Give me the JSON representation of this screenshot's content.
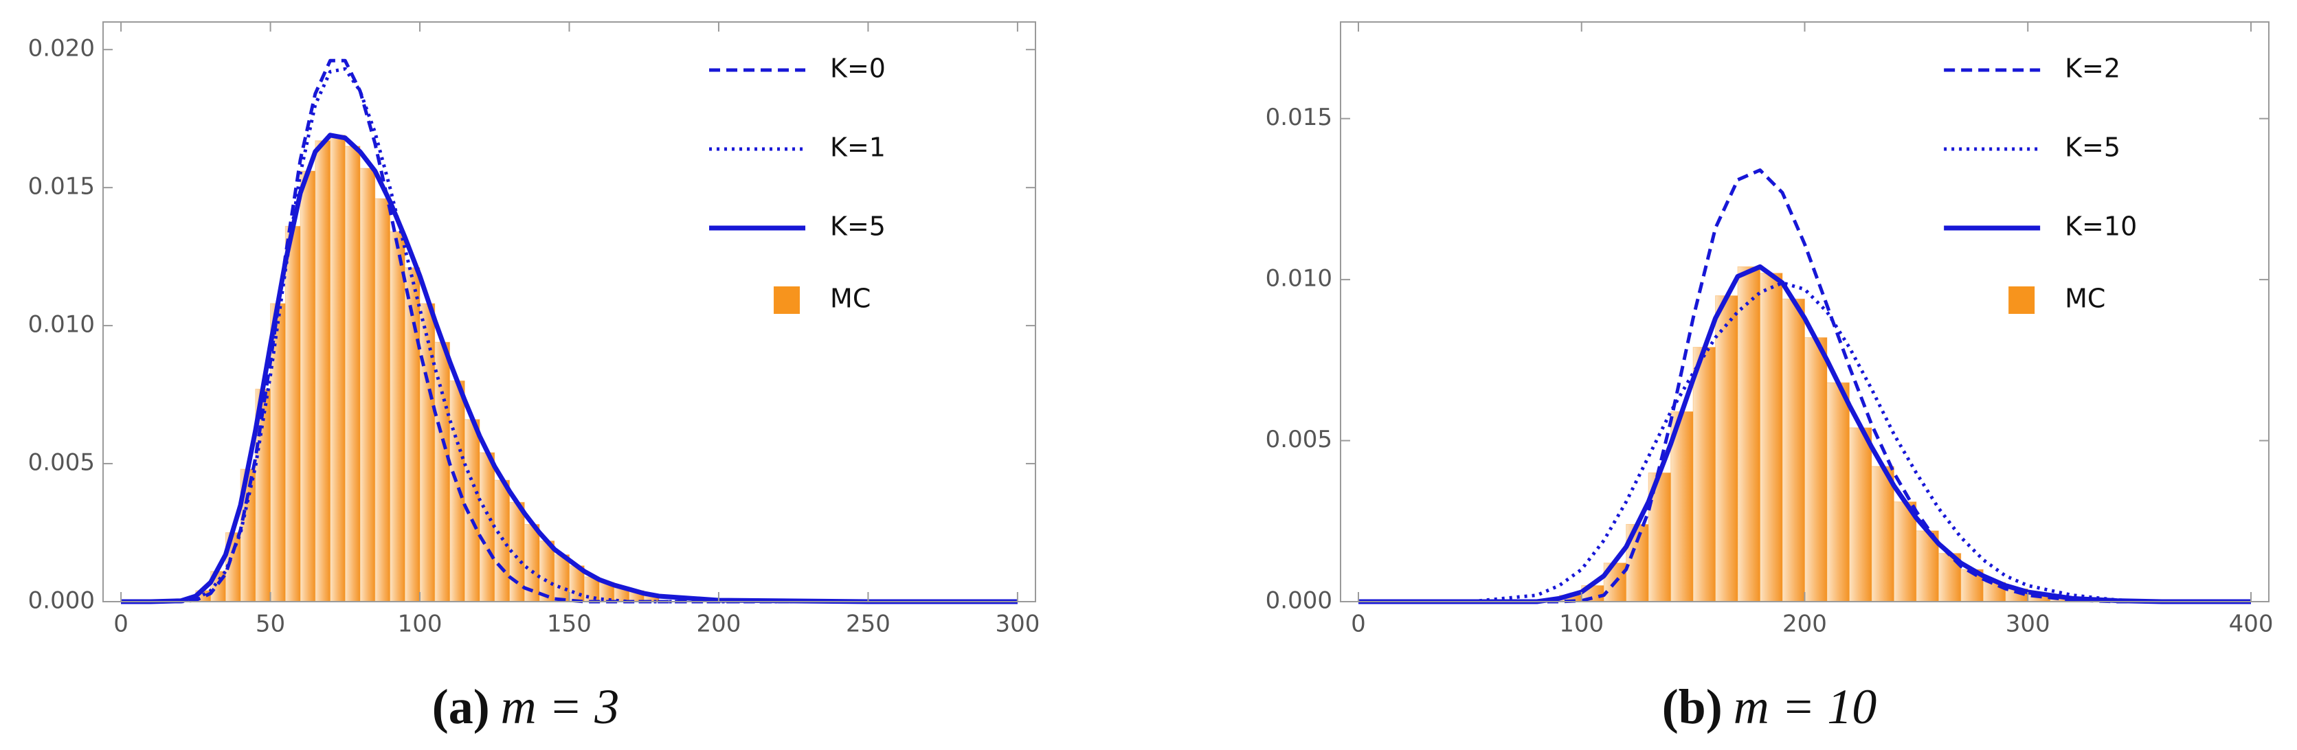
{
  "chart_data": [
    {
      "type": "histogram",
      "caption_label": "(a)",
      "caption": "m = 3",
      "xlim": [
        -6,
        306
      ],
      "ylim": [
        0,
        0.021
      ],
      "xticks": [
        0,
        50,
        100,
        150,
        200,
        250,
        300
      ],
      "yticks": [
        {
          "value": 0,
          "label": "0.000"
        },
        0.005,
        {
          "value": 0.01,
          "label": "0.010"
        },
        0.015,
        {
          "value": 0.02,
          "label": "0.020"
        }
      ],
      "grid": false,
      "legend": "top right",
      "x": [
        0,
        10,
        20,
        25,
        30,
        35,
        40,
        45,
        50,
        55,
        60,
        65,
        70,
        75,
        80,
        85,
        90,
        95,
        100,
        105,
        110,
        115,
        120,
        125,
        130,
        135,
        140,
        145,
        150,
        155,
        160,
        165,
        170,
        175,
        180,
        200,
        250,
        300
      ],
      "series": [
        {
          "name": "K=0",
          "color": "#1717d6",
          "style": "dash",
          "values": [
            0,
            0,
            0,
            5e-05,
            0.0003,
            0.001,
            0.0026,
            0.0052,
            0.0087,
            0.0125,
            0.016,
            0.0184,
            0.0196,
            0.0196,
            0.0185,
            0.0166,
            0.0142,
            0.0116,
            0.0091,
            0.0069,
            0.005,
            0.0035,
            0.0024,
            0.0015,
            0.0009,
            0.0005,
            0.0003,
            0.0001,
            5e-05,
            0,
            0,
            0,
            0,
            0,
            0,
            0,
            0,
            0
          ]
        },
        {
          "name": "K=1",
          "color": "#1717d6",
          "style": "dot",
          "values": [
            0,
            0,
            0,
            0.0001,
            0.0004,
            0.0011,
            0.0025,
            0.0049,
            0.0082,
            0.012,
            0.0155,
            0.018,
            0.0192,
            0.0193,
            0.0185,
            0.017,
            0.015,
            0.0128,
            0.0106,
            0.0085,
            0.0066,
            0.005,
            0.0037,
            0.0027,
            0.0019,
            0.0013,
            0.0009,
            0.0006,
            0.0004,
            0.0002,
            0.0001,
            5e-05,
            0,
            0,
            0,
            0,
            0,
            0
          ]
        },
        {
          "name": "K=5",
          "color": "#1717d6",
          "style": "solid",
          "values": [
            0,
            0,
            3e-05,
            0.0002,
            0.0007,
            0.0017,
            0.0035,
            0.0062,
            0.0093,
            0.0123,
            0.0148,
            0.0163,
            0.0169,
            0.0168,
            0.0163,
            0.0156,
            0.0145,
            0.0132,
            0.0118,
            0.0102,
            0.0087,
            0.0073,
            0.006,
            0.0049,
            0.004,
            0.0032,
            0.0025,
            0.0019,
            0.0015,
            0.0011,
            0.0008,
            0.0006,
            0.00045,
            0.0003,
            0.0002,
            5e-05,
            0,
            0
          ]
        }
      ],
      "histogram": {
        "name": "MC",
        "color": "#f7941d",
        "bins": [
          20,
          25,
          30,
          35,
          40,
          45,
          50,
          55,
          60,
          65,
          70,
          75,
          80,
          85,
          90,
          95,
          100,
          105,
          110,
          115,
          120,
          125,
          130,
          135,
          140,
          145,
          150,
          155,
          160,
          165,
          170,
          175,
          180
        ],
        "values": [
          0.0001,
          0.0004,
          0.0011,
          0.0025,
          0.0048,
          0.0077,
          0.0108,
          0.0136,
          0.0156,
          0.0167,
          0.0169,
          0.0165,
          0.0157,
          0.0146,
          0.0134,
          0.0121,
          0.0108,
          0.0094,
          0.008,
          0.0066,
          0.0054,
          0.0044,
          0.0036,
          0.0028,
          0.0022,
          0.0017,
          0.0013,
          0.0009,
          0.0007,
          0.0005,
          0.0004,
          0.0002
        ]
      }
    },
    {
      "type": "histogram",
      "caption_label": "(b)",
      "caption": "m = 10",
      "xlim": [
        -8,
        408
      ],
      "ylim": [
        0,
        0.018
      ],
      "xticks": [
        0,
        100,
        200,
        300,
        400
      ],
      "yticks": [
        {
          "value": 0,
          "label": "0.000"
        },
        0.005,
        {
          "value": 0.01,
          "label": "0.010"
        },
        0.015
      ],
      "grid": false,
      "legend": "top right",
      "x": [
        0,
        50,
        80,
        90,
        100,
        110,
        120,
        130,
        140,
        150,
        160,
        170,
        180,
        190,
        200,
        210,
        220,
        230,
        240,
        250,
        260,
        270,
        280,
        290,
        300,
        320,
        340,
        360,
        400
      ],
      "series": [
        {
          "name": "K=2",
          "color": "#1717d6",
          "style": "dash",
          "values": [
            0,
            0,
            0,
            0,
            3e-05,
            0.0002,
            0.001,
            0.0028,
            0.0056,
            0.0088,
            0.0116,
            0.0131,
            0.0134,
            0.0127,
            0.0111,
            0.0092,
            0.0073,
            0.0055,
            0.004,
            0.0028,
            0.0018,
            0.0011,
            0.0007,
            0.0004,
            0.0002,
            5e-05,
            0,
            0,
            0
          ]
        },
        {
          "name": "K=5",
          "color": "#1717d6",
          "style": "dot",
          "values": [
            0,
            0,
            0.0002,
            0.0005,
            0.001,
            0.0019,
            0.0031,
            0.0045,
            0.0059,
            0.0071,
            0.0082,
            0.009,
            0.0096,
            0.0099,
            0.0097,
            0.009,
            0.0079,
            0.0066,
            0.0052,
            0.004,
            0.0029,
            0.002,
            0.0013,
            0.0008,
            0.0005,
            0.0002,
            5e-05,
            0,
            0
          ]
        },
        {
          "name": "K=10",
          "color": "#1717d6",
          "style": "solid",
          "values": [
            0,
            0,
            0,
            0.0001,
            0.0003,
            0.0008,
            0.0017,
            0.0031,
            0.0049,
            0.0069,
            0.0088,
            0.0101,
            0.0104,
            0.0099,
            0.0088,
            0.0075,
            0.0061,
            0.0048,
            0.0036,
            0.0026,
            0.0018,
            0.0012,
            0.0008,
            0.0005,
            0.0003,
            0.0001,
            3e-05,
            0,
            0
          ]
        }
      ],
      "histogram": {
        "name": "MC",
        "color": "#f7941d",
        "bins": [
          90,
          100,
          110,
          120,
          130,
          140,
          150,
          160,
          170,
          180,
          190,
          200,
          210,
          220,
          230,
          240,
          250,
          260,
          270,
          280,
          290,
          300,
          310,
          320
        ],
        "values": [
          0.0002,
          0.0005,
          0.0012,
          0.0024,
          0.004,
          0.0059,
          0.0079,
          0.0095,
          0.0104,
          0.0102,
          0.0094,
          0.0082,
          0.0068,
          0.0054,
          0.0042,
          0.0031,
          0.0022,
          0.0015,
          0.001,
          0.0006,
          0.0004,
          0.0002,
          0.0001
        ]
      }
    }
  ]
}
